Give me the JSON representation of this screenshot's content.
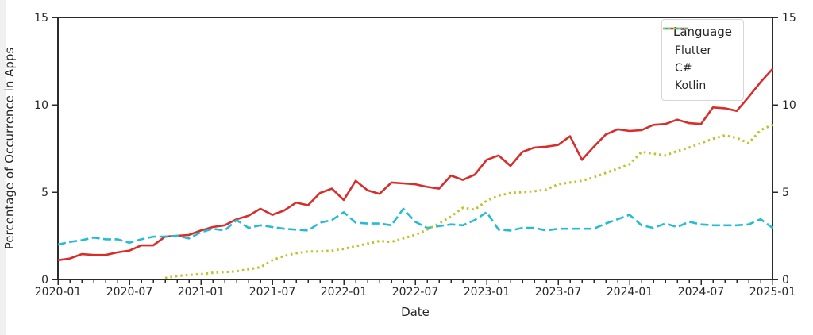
{
  "chart_data": {
    "type": "line",
    "title": "",
    "xlabel": "Date",
    "ylabel": "Percentage of Occurrence in Apps",
    "legend_title": "Language",
    "legend_position": "upper right",
    "grid": false,
    "ylim": [
      0,
      15
    ],
    "y_ticks": [
      0,
      5,
      10,
      15
    ],
    "x_major_tick_labels": [
      "2020-01",
      "2020-07",
      "2021-01",
      "2021-07",
      "2022-01",
      "2022-07",
      "2023-01",
      "2023-07",
      "2024-01",
      "2024-07",
      "2025-01"
    ],
    "x_major_tick_every_n_months": 6,
    "x": [
      "2020-01",
      "2020-02",
      "2020-03",
      "2020-04",
      "2020-05",
      "2020-06",
      "2020-07",
      "2020-08",
      "2020-09",
      "2020-10",
      "2020-11",
      "2020-12",
      "2021-01",
      "2021-02",
      "2021-03",
      "2021-04",
      "2021-05",
      "2021-06",
      "2021-07",
      "2021-08",
      "2021-09",
      "2021-10",
      "2021-11",
      "2021-12",
      "2022-01",
      "2022-02",
      "2022-03",
      "2022-04",
      "2022-05",
      "2022-06",
      "2022-07",
      "2022-08",
      "2022-09",
      "2022-10",
      "2022-11",
      "2022-12",
      "2023-01",
      "2023-02",
      "2023-03",
      "2023-04",
      "2023-05",
      "2023-06",
      "2023-07",
      "2023-08",
      "2023-09",
      "2023-10",
      "2023-11",
      "2023-12",
      "2024-01",
      "2024-02",
      "2024-03",
      "2024-04",
      "2024-05",
      "2024-06",
      "2024-07",
      "2024-08",
      "2024-09",
      "2024-10",
      "2024-11",
      "2024-12",
      "2025-01"
    ],
    "series": [
      {
        "name": "Flutter",
        "color": "#d62e2a",
        "line_style": "solid",
        "values": [
          1.1,
          1.2,
          1.45,
          1.4,
          1.4,
          1.55,
          1.65,
          1.95,
          1.95,
          2.45,
          2.5,
          2.55,
          2.8,
          3.0,
          3.1,
          3.45,
          3.65,
          4.05,
          3.7,
          3.95,
          4.4,
          4.25,
          4.95,
          5.2,
          4.55,
          5.65,
          5.1,
          4.9,
          5.55,
          5.5,
          5.45,
          5.3,
          5.2,
          5.95,
          5.7,
          6.0,
          6.85,
          7.1,
          6.5,
          7.3,
          7.55,
          7.6,
          7.7,
          8.2,
          6.85,
          7.6,
          8.3,
          8.6,
          8.5,
          8.55,
          8.85,
          8.9,
          9.15,
          8.95,
          8.9,
          9.85,
          9.8,
          9.65,
          10.45,
          11.3,
          12.05
        ]
      },
      {
        "name": "C#",
        "color": "#25bcd3",
        "line_style": "dashed",
        "values": [
          2.0,
          2.15,
          2.25,
          2.4,
          2.3,
          2.3,
          2.1,
          2.3,
          2.45,
          2.45,
          2.5,
          2.35,
          2.7,
          2.9,
          2.8,
          3.4,
          2.95,
          3.1,
          3.0,
          2.9,
          2.85,
          2.8,
          3.25,
          3.4,
          3.85,
          3.25,
          3.2,
          3.2,
          3.1,
          4.05,
          3.3,
          2.95,
          3.05,
          3.15,
          3.1,
          3.4,
          3.85,
          2.85,
          2.8,
          2.95,
          2.95,
          2.8,
          2.9,
          2.9,
          2.9,
          2.9,
          3.2,
          3.45,
          3.7,
          3.1,
          2.95,
          3.2,
          3.0,
          3.3,
          3.15,
          3.1,
          3.1,
          3.1,
          3.15,
          3.45,
          2.95
        ]
      },
      {
        "name": "Kotlin",
        "color": "#bfc125",
        "line_style": "dotted",
        "values": [
          null,
          null,
          null,
          null,
          null,
          null,
          null,
          null,
          null,
          0.08,
          0.2,
          0.26,
          0.3,
          0.38,
          0.42,
          0.47,
          0.58,
          0.7,
          1.1,
          1.35,
          1.5,
          1.6,
          1.6,
          1.65,
          1.75,
          1.9,
          2.05,
          2.2,
          2.15,
          2.35,
          2.55,
          2.85,
          3.2,
          3.6,
          4.1,
          4.0,
          4.5,
          4.8,
          4.95,
          5.0,
          5.05,
          5.15,
          5.45,
          5.55,
          5.65,
          5.85,
          6.1,
          6.35,
          6.6,
          7.3,
          7.2,
          7.1,
          7.35,
          7.55,
          7.8,
          8.05,
          8.25,
          8.1,
          7.8,
          8.55,
          8.85
        ]
      }
    ]
  },
  "style": {
    "text_color": "#262626",
    "spine_color": "#2b2b2b",
    "background": "#ffffff"
  }
}
